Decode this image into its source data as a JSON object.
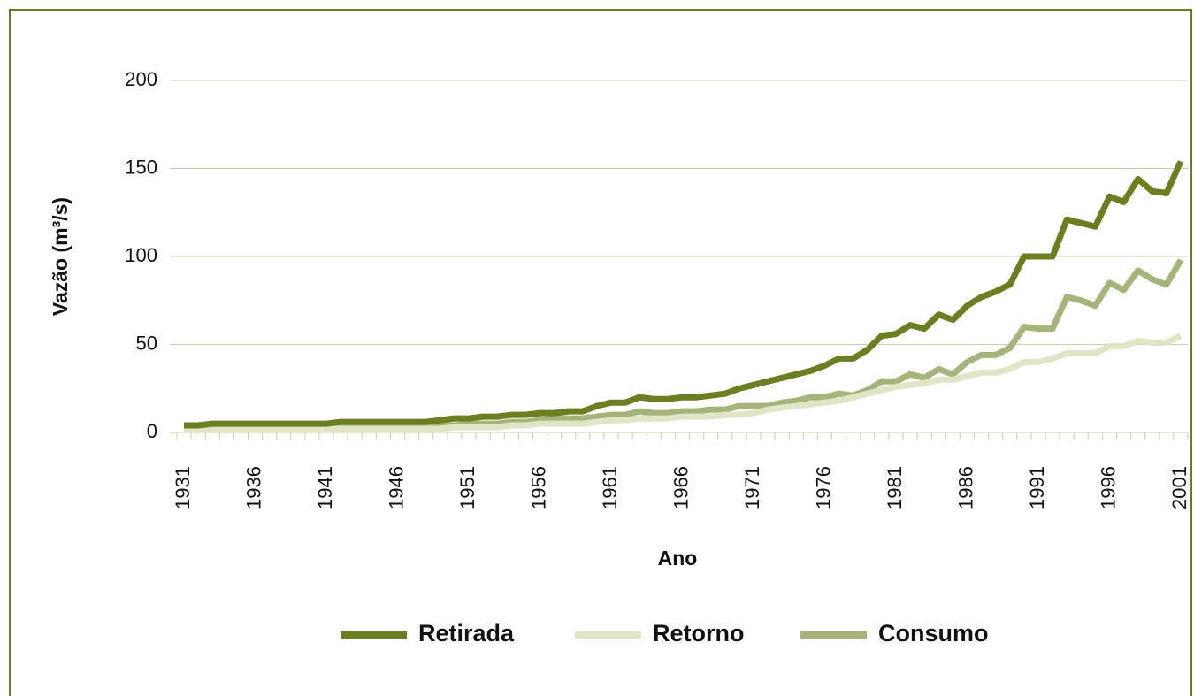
{
  "chart_data": {
    "type": "line",
    "x_label": "Ano",
    "y_label": "Vazão (m³/s)",
    "categories": [
      1931,
      null,
      null,
      null,
      null,
      1936,
      null,
      null,
      null,
      null,
      1941,
      null,
      null,
      null,
      null,
      1946,
      null,
      null,
      null,
      null,
      1951,
      null,
      null,
      null,
      null,
      1956,
      null,
      null,
      null,
      null,
      1961,
      null,
      null,
      null,
      null,
      1966,
      null,
      null,
      null,
      null,
      1971,
      null,
      null,
      null,
      null,
      1976,
      null,
      null,
      null,
      null,
      1981,
      null,
      null,
      null,
      null,
      1986,
      null,
      null,
      null,
      null,
      1991,
      null,
      null,
      null,
      null,
      1996,
      null,
      null,
      null,
      null,
      2001
    ],
    "series": [
      {
        "name": "Retirada",
        "color": "#6b7f1e",
        "values": [
          4,
          4,
          5,
          5,
          5,
          5,
          5,
          5,
          5,
          5,
          5,
          6,
          6,
          6,
          6,
          6,
          6,
          6,
          7,
          8,
          8,
          9,
          9,
          10,
          10,
          11,
          11,
          12,
          12,
          15,
          17,
          17,
          20,
          19,
          19,
          20,
          20,
          21,
          22,
          25,
          27,
          29,
          31,
          33,
          35,
          38,
          42,
          42,
          47,
          55,
          56,
          61,
          59,
          67,
          64,
          72,
          77,
          80,
          84,
          100,
          100,
          100,
          121,
          119,
          117,
          134,
          131,
          144,
          137,
          136,
          154
        ]
      },
      {
        "name": "Retorno",
        "color": "#dfe5c5",
        "values": [
          2,
          2,
          2,
          2,
          2,
          2,
          2,
          2,
          2,
          2,
          2,
          2,
          2,
          2,
          2,
          2,
          2,
          2,
          2,
          3,
          3,
          3,
          3,
          4,
          4,
          5,
          5,
          5,
          5,
          6,
          7,
          7,
          8,
          8,
          8,
          9,
          9,
          9,
          10,
          10,
          11,
          13,
          14,
          15,
          16,
          17,
          18,
          20,
          22,
          24,
          26,
          27,
          28,
          30,
          30,
          32,
          34,
          34,
          36,
          40,
          40,
          42,
          45,
          45,
          45,
          49,
          49,
          52,
          51,
          51,
          55
        ]
      },
      {
        "name": "Consumo",
        "color": "#a5b57a",
        "values": [
          3,
          3,
          3,
          3,
          3,
          3,
          3,
          3,
          3,
          3,
          3,
          4,
          4,
          4,
          4,
          4,
          4,
          4,
          4,
          4,
          5,
          5,
          5,
          6,
          6,
          7,
          8,
          8,
          8,
          9,
          10,
          10,
          12,
          11,
          11,
          12,
          12,
          13,
          13,
          15,
          15,
          15,
          17,
          18,
          20,
          20,
          22,
          21,
          24,
          29,
          29,
          33,
          31,
          36,
          33,
          40,
          44,
          44,
          48,
          60,
          59,
          59,
          77,
          75,
          72,
          85,
          81,
          92,
          87,
          84,
          98
        ]
      }
    ],
    "ylim": [
      0,
      200
    ],
    "yticks": [
      0,
      50,
      100,
      150,
      200
    ],
    "grid": true,
    "legend": "bottom"
  }
}
